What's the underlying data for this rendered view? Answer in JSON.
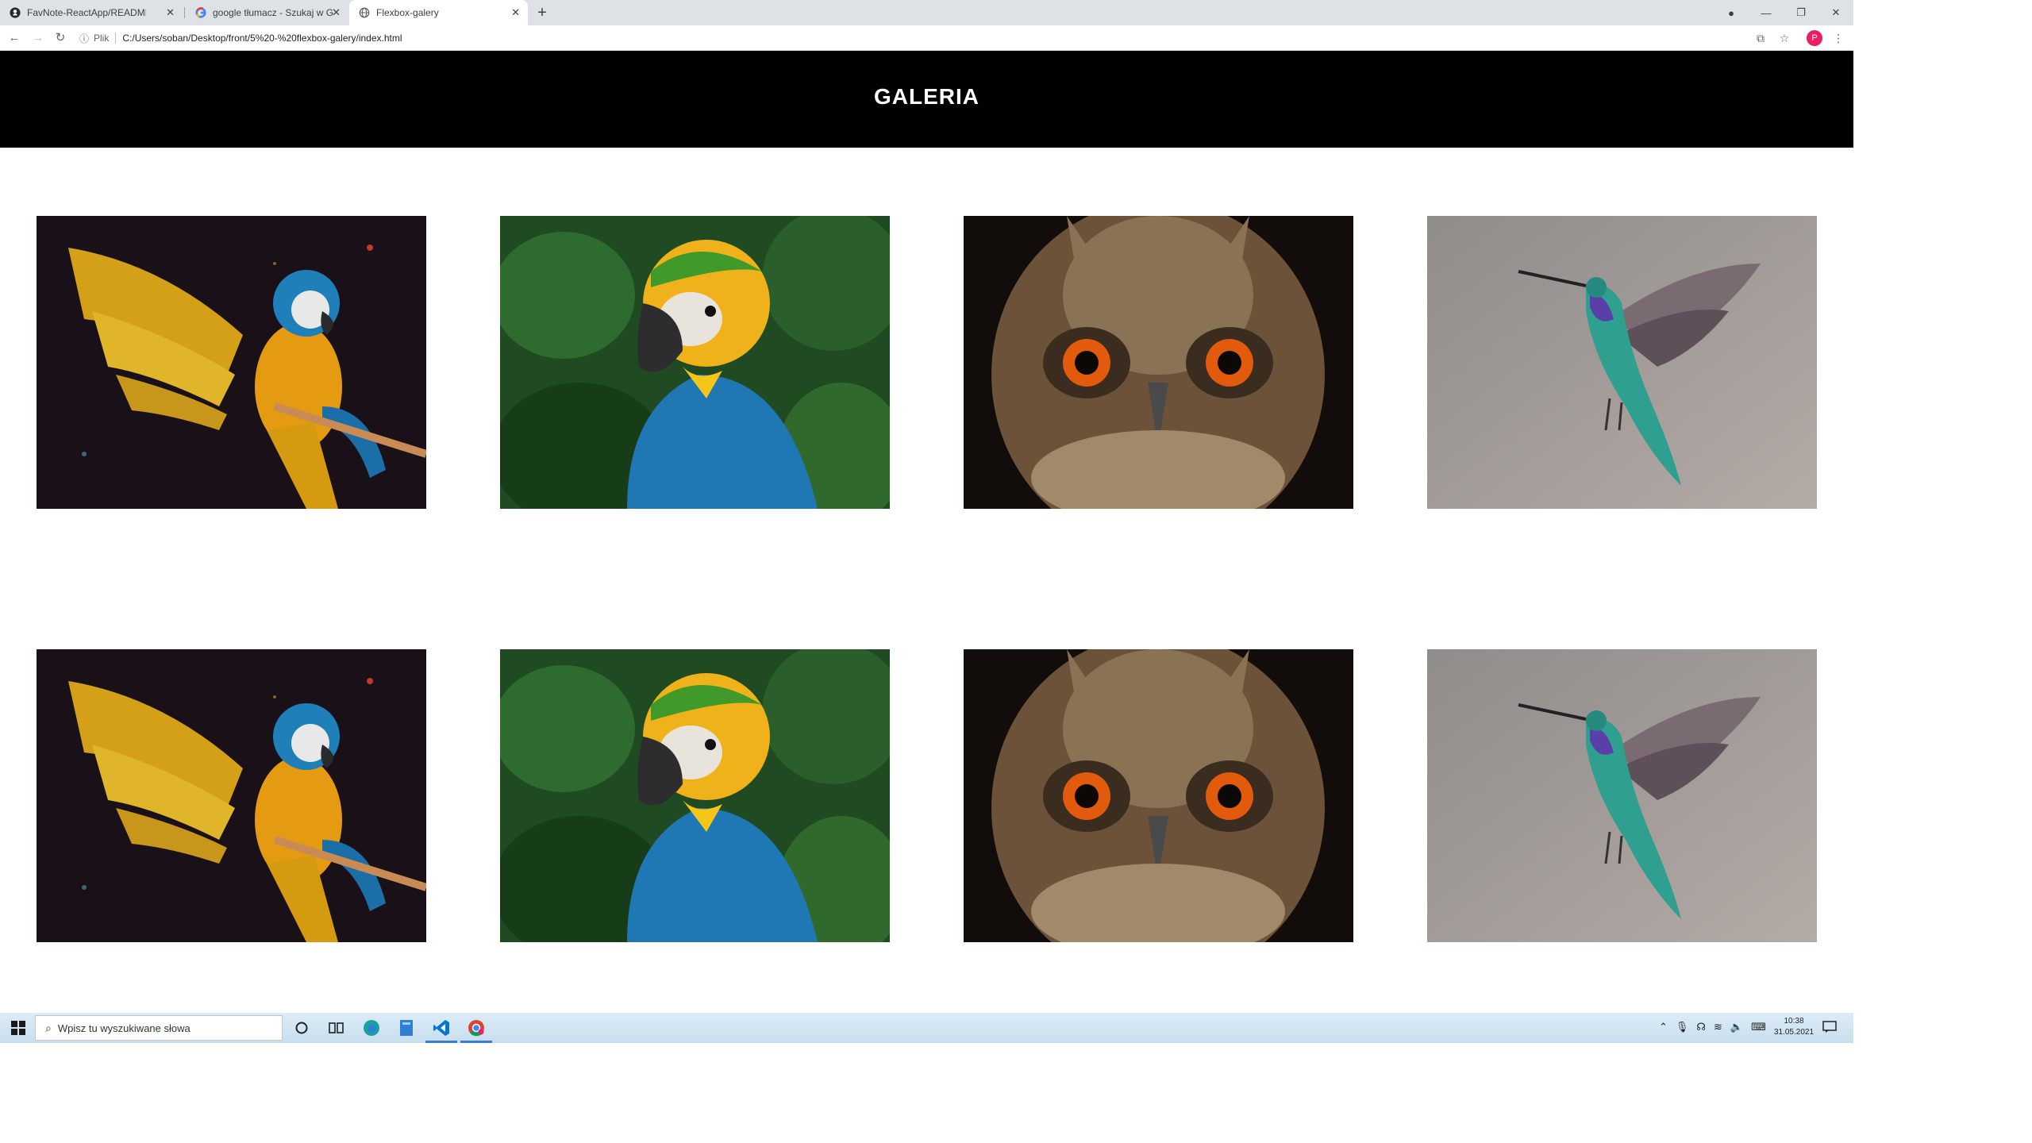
{
  "browser": {
    "tabs": [
      {
        "title": "FavNote-ReactApp/README.md",
        "favicon": "github-icon",
        "active": false
      },
      {
        "title": "google tłumacz - Szukaj w Google",
        "favicon": "google-icon",
        "active": false
      },
      {
        "title": "Flexbox-galery",
        "favicon": "globe-icon",
        "active": true
      }
    ],
    "new_tab_label": "+",
    "address": {
      "scheme_label": "Plik",
      "url": "C:/Users/soban/Desktop/front/5%20-%20flexbox-galery/index.html"
    },
    "profile_initial": "P"
  },
  "page": {
    "title": "GALERIA",
    "photos": [
      {
        "subject": "macaw-spread-wings"
      },
      {
        "subject": "blue-gold-macaw-portrait"
      },
      {
        "subject": "owl-face"
      },
      {
        "subject": "hummingbird"
      },
      {
        "subject": "macaw-spread-wings"
      },
      {
        "subject": "blue-gold-macaw-portrait"
      },
      {
        "subject": "owl-face"
      },
      {
        "subject": "hummingbird"
      }
    ]
  },
  "taskbar": {
    "search_placeholder": "Wpisz tu wyszukiwane słowa",
    "clock_time": "10:38",
    "clock_date": "31.05.2021"
  },
  "colors": {
    "page_header_bg": "#000000",
    "page_title": "#ffffff",
    "tabstrip_bg": "#dee1e6",
    "taskbar_bg": "#d3e6f3"
  }
}
